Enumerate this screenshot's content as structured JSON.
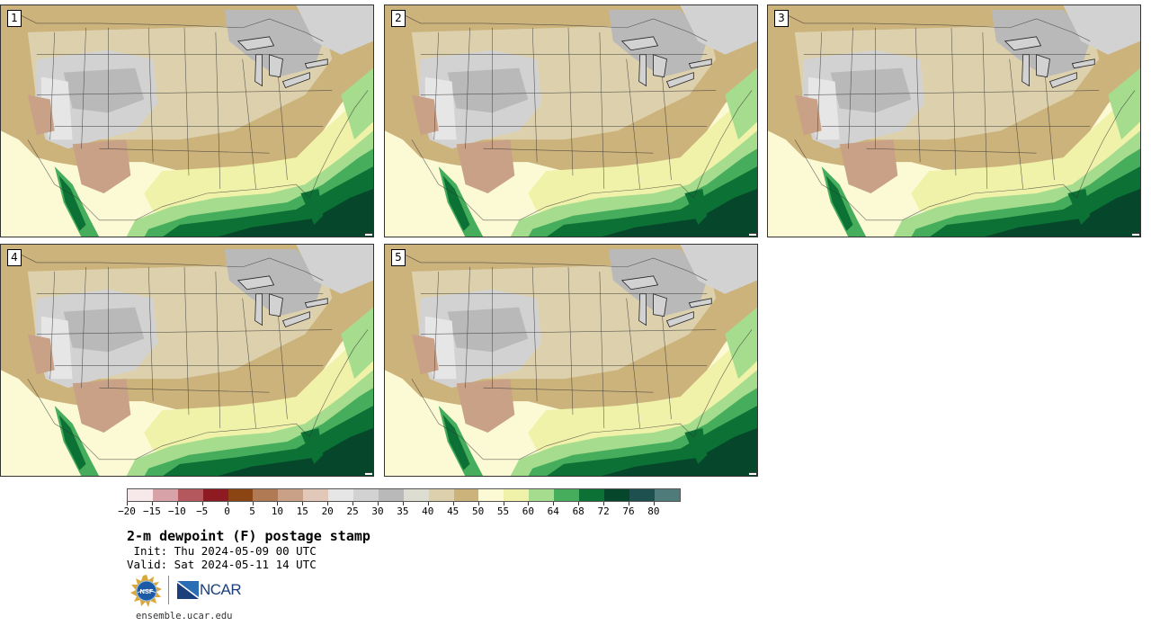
{
  "panels": [
    {
      "label": "1"
    },
    {
      "label": "2"
    },
    {
      "label": "3"
    },
    {
      "label": "4"
    },
    {
      "label": "5"
    }
  ],
  "colorbar": {
    "tick_labels": [
      "−20",
      "−15",
      "−10",
      "−5",
      "0",
      "5",
      "10",
      "15",
      "20",
      "25",
      "30",
      "35",
      "40",
      "45",
      "50",
      "55",
      "60",
      "64",
      "68",
      "72",
      "76",
      "80"
    ],
    "colors": [
      "#f7e9ea",
      "#d7a3a8",
      "#b4585e",
      "#8e1a22",
      "#8b4513",
      "#b07a55",
      "#c9a187",
      "#e2c8b8",
      "#e6e6e6",
      "#d2d2d2",
      "#b9b9b9",
      "#ddddd2",
      "#ddd1ad",
      "#ccb27b",
      "#fbfad5",
      "#f1f2a9",
      "#a6dc8e",
      "#46ad5c",
      "#0c7134",
      "#06462a",
      "#1e5050",
      "#4f7b7b"
    ]
  },
  "title": "2-m dewpoint (F) postage stamp",
  "init": " Init: Thu 2024-05-09 00 UTC",
  "valid": "Valid: Sat 2024-05-11 14 UTC",
  "logos": {
    "nsf": "NSF",
    "ncar": "NCAR"
  },
  "url": "ensemble.ucar.edu"
}
